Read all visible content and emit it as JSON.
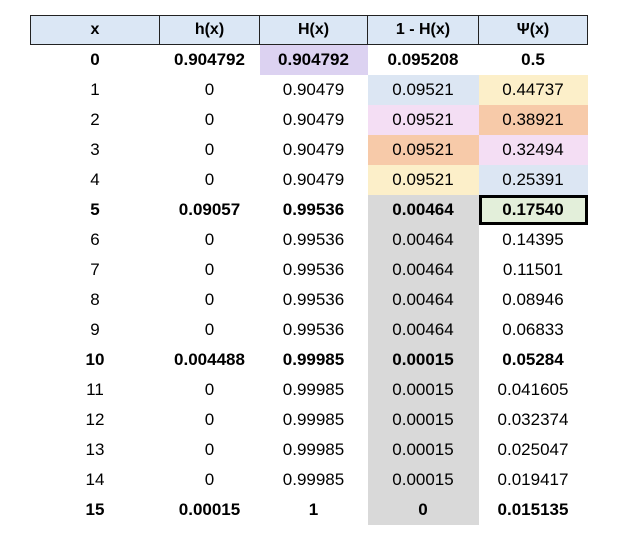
{
  "headers": [
    "x",
    "h(x)",
    "H(x)",
    "1 - H(x)",
    "Ψ(x)"
  ],
  "rows": [
    {
      "cells": [
        "0",
        "0.904792",
        "0.904792",
        "0.095208",
        "0.5"
      ],
      "bold": true
    },
    {
      "cells": [
        "1",
        "0",
        "0.90479",
        "0.09521",
        "0.44737"
      ],
      "bold": false
    },
    {
      "cells": [
        "2",
        "0",
        "0.90479",
        "0.09521",
        "0.38921"
      ],
      "bold": false
    },
    {
      "cells": [
        "3",
        "0",
        "0.90479",
        "0.09521",
        "0.32494"
      ],
      "bold": false
    },
    {
      "cells": [
        "4",
        "0",
        "0.90479",
        "0.09521",
        "0.25391"
      ],
      "bold": false
    },
    {
      "cells": [
        "5",
        "0.09057",
        "0.99536",
        "0.00464",
        "0.17540"
      ],
      "bold": true
    },
    {
      "cells": [
        "6",
        "0",
        "0.99536",
        "0.00464",
        "0.14395"
      ],
      "bold": false
    },
    {
      "cells": [
        "7",
        "0",
        "0.99536",
        "0.00464",
        "0.11501"
      ],
      "bold": false
    },
    {
      "cells": [
        "8",
        "0",
        "0.99536",
        "0.00464",
        "0.08946"
      ],
      "bold": false
    },
    {
      "cells": [
        "9",
        "0",
        "0.99536",
        "0.00464",
        "0.06833"
      ],
      "bold": false
    },
    {
      "cells": [
        "10",
        "0.004488",
        "0.99985",
        "0.00015",
        "0.05284"
      ],
      "bold": true
    },
    {
      "cells": [
        "11",
        "0",
        "0.99985",
        "0.00015",
        "0.041605"
      ],
      "bold": false
    },
    {
      "cells": [
        "12",
        "0",
        "0.99985",
        "0.00015",
        "0.032374"
      ],
      "bold": false
    },
    {
      "cells": [
        "13",
        "0",
        "0.99985",
        "0.00015",
        "0.025047"
      ],
      "bold": false
    },
    {
      "cells": [
        "14",
        "0",
        "0.99985",
        "0.00015",
        "0.019417"
      ],
      "bold": false
    },
    {
      "cells": [
        "15",
        "0.00015",
        "1",
        "0",
        "0.015135"
      ],
      "bold": true
    }
  ],
  "highlight_colors": {
    "header": "#dbe7f5",
    "gray": "#d9d9d9",
    "purple": "#dcd2f1",
    "blue": "#dce6f3",
    "pink": "#f4def4",
    "peach": "#f7caa9",
    "cream": "#fcefc9",
    "green": "#e3efda"
  }
}
